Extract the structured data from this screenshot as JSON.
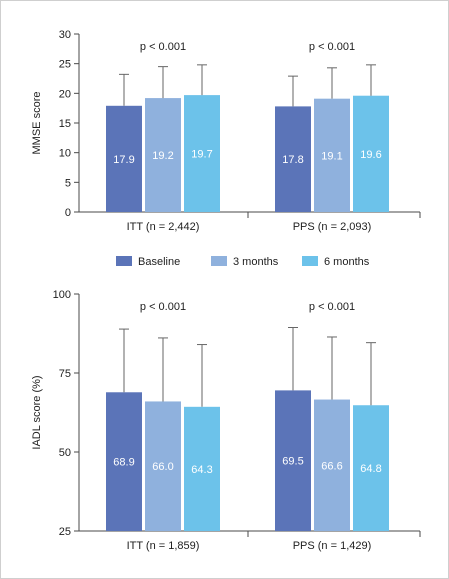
{
  "colors": {
    "baseline": "#5b74b8",
    "m3": "#8fb1dd",
    "m6": "#6cc2ea",
    "axis": "#4a4a4a",
    "divider": "#c8c8c8",
    "error_bar": "#666666"
  },
  "legend": {
    "items": [
      {
        "label": "Baseline",
        "color_key": "baseline"
      },
      {
        "label": "3 months",
        "color_key": "m3"
      },
      {
        "label": "6 months",
        "color_key": "m6"
      }
    ]
  },
  "chart_data": [
    {
      "type": "bar",
      "ylabel": "MMSE score",
      "ylim": [
        0,
        30
      ],
      "yticks": [
        0,
        5,
        10,
        15,
        20,
        25,
        30
      ],
      "categories": [
        "ITT (n = 2,442)",
        "PPS (n = 2,093)"
      ],
      "annotations": [
        "p < 0.001",
        "p < 0.001"
      ],
      "series": [
        {
          "name": "Baseline",
          "values": [
            17.9,
            17.8
          ],
          "labels": [
            "17.9",
            "17.8"
          ],
          "errors": [
            5.3,
            5.1
          ],
          "color_key": "baseline"
        },
        {
          "name": "3 months",
          "values": [
            19.2,
            19.1
          ],
          "labels": [
            "19.2",
            "19.1"
          ],
          "errors": [
            5.3,
            5.2
          ],
          "color_key": "m3"
        },
        {
          "name": "6 months",
          "values": [
            19.7,
            19.6
          ],
          "labels": [
            "19.7",
            "19.6"
          ],
          "errors": [
            5.1,
            5.2
          ],
          "color_key": "m6"
        }
      ]
    },
    {
      "type": "bar",
      "ylabel": "IADL score (%)",
      "ylim": [
        25,
        100
      ],
      "yticks": [
        25,
        50,
        75,
        100
      ],
      "categories": [
        "ITT (n = 1,859)",
        "PPS (n = 1,429)"
      ],
      "annotations": [
        "p < 0.001",
        "p < 0.001"
      ],
      "series": [
        {
          "name": "Baseline",
          "values": [
            68.9,
            69.5
          ],
          "labels": [
            "68.9",
            "69.5"
          ],
          "errors": [
            20.0,
            19.9
          ],
          "color_key": "baseline"
        },
        {
          "name": "3 months",
          "values": [
            66.0,
            66.6
          ],
          "labels": [
            "66.0",
            "66.6"
          ],
          "errors": [
            20.1,
            19.8
          ],
          "color_key": "m3"
        },
        {
          "name": "6 months",
          "values": [
            64.3,
            64.8
          ],
          "labels": [
            "64.3",
            "64.8"
          ],
          "errors": [
            19.7,
            19.8
          ],
          "color_key": "m6"
        }
      ]
    }
  ]
}
